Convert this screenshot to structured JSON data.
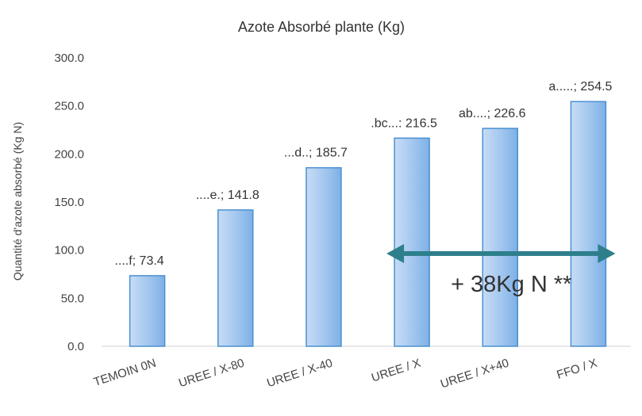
{
  "chart_data": {
    "type": "bar",
    "title": "Azote Absorbé plante (Kg)",
    "ylabel": "Quantité d'azote absorbé (Kg N)",
    "xlabel": "",
    "ylim": [
      0,
      300
    ],
    "yticks": [
      "0.0",
      "50.0",
      "100.0",
      "150.0",
      "200.0",
      "250.0",
      "300.0"
    ],
    "grid": false,
    "categories": [
      "TEMOIN 0N",
      "UREE / X-80",
      "UREE / X-40",
      "UREE / X",
      "UREE / X+40",
      "FFO / X"
    ],
    "values": [
      73.4,
      141.8,
      185.7,
      216.5,
      226.6,
      254.5
    ],
    "data_labels": [
      "....f; 73.4",
      "....e.; 141.8",
      "...d..; 185.7",
      ".bc...: 216.5",
      "ab....; 226.6",
      "a.....; 254.5"
    ],
    "bar_color": "#9cc4ee",
    "bar_edge_color": "#4a90d0",
    "annotation": {
      "text": "+ 38Kg N **",
      "from_category": "UREE / X",
      "to_category": "FFO / X",
      "arrow_color": "#2e7f8c"
    }
  }
}
